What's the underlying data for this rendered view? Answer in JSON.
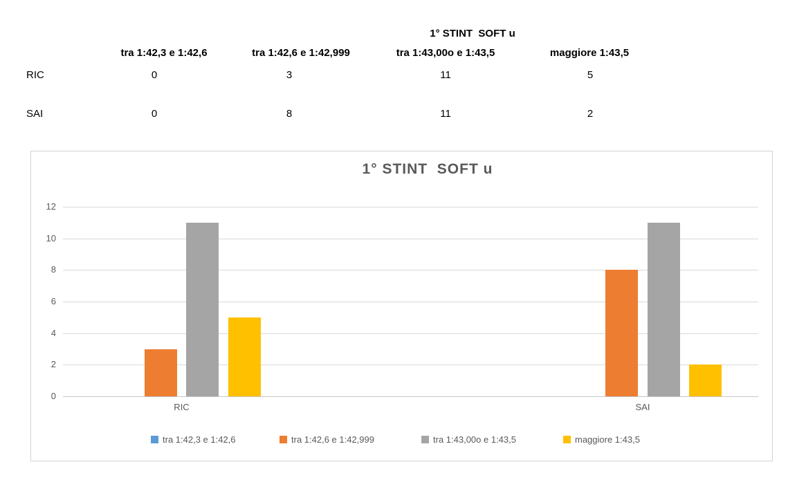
{
  "table": {
    "title": "1° STINT  SOFT u",
    "columns": [
      "tra 1:42,3 e 1:42,6",
      "tra 1:42,6 e 1:42,999",
      "tra 1:43,00o e 1:43,5",
      "maggiore 1:43,5"
    ],
    "rows": [
      {
        "label": "RIC",
        "values": [
          "0",
          "3",
          "11",
          "5"
        ]
      },
      {
        "label": "SAI",
        "values": [
          "0",
          "8",
          "11",
          "2"
        ]
      }
    ]
  },
  "chart_data": {
    "type": "bar",
    "title": "1° STINT  SOFT u",
    "categories": [
      "RIC",
      "SAI"
    ],
    "series": [
      {
        "name": "tra 1:42,3 e 1:42,6",
        "color": "#5B9BD5",
        "values": [
          0,
          0
        ]
      },
      {
        "name": "tra 1:42,6 e 1:42,999",
        "color": "#ED7D31",
        "values": [
          3,
          8
        ]
      },
      {
        "name": "tra 1:43,00o e 1:43,5",
        "color": "#A5A5A5",
        "values": [
          11,
          11
        ]
      },
      {
        "name": "maggiore 1:43,5",
        "color": "#FFC000",
        "values": [
          5,
          2
        ]
      }
    ],
    "xlabel": "",
    "ylabel": "",
    "ylim": [
      0,
      12
    ],
    "yticks": [
      0,
      2,
      4,
      6,
      8,
      10,
      12
    ],
    "grid": true,
    "legend_position": "bottom",
    "colors": {
      "grid": "#d9d9d9",
      "axis_text": "#595959",
      "title_text": "#595959",
      "frame_border": "#d2d2d2"
    }
  }
}
